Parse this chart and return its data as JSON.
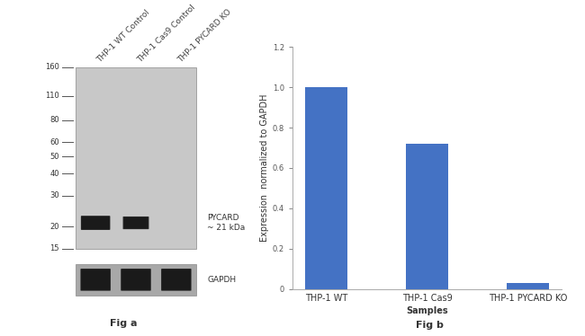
{
  "fig_width": 6.5,
  "fig_height": 3.74,
  "dpi": 100,
  "background_color": "#ffffff",
  "wb_lanes": [
    "THP-1 WT Control",
    "THP-1 Cas9 Control",
    "THP-1 PYCARD KO"
  ],
  "wb_mw_labels": [
    160,
    110,
    80,
    60,
    50,
    40,
    30,
    20,
    15
  ],
  "pycard_label": "PYCARD\n~ 21 kDa",
  "gapdh_label": "GAPDH",
  "fig_a_label": "Fig a",
  "fig_b_label": "Fig b",
  "bar_categories": [
    "THP-1 WT",
    "THP-1 Cas9",
    "THP-1 PYCARD KO"
  ],
  "bar_values": [
    1.0,
    0.72,
    0.03
  ],
  "bar_color": "#4472c4",
  "bar_ylabel": "Expression  normalized to GAPDH",
  "bar_xlabel": "Samples",
  "bar_ylim": [
    0,
    1.2
  ],
  "bar_yticks": [
    0,
    0.2,
    0.4,
    0.6,
    0.8,
    1.0,
    1.2
  ],
  "gel_bg_color": "#c8c8c8",
  "gel_border_color": "#888888",
  "label_fontsize": 6.5,
  "tick_fontsize": 6.0,
  "bar_label_fontsize": 7,
  "axis_fontsize": 7,
  "fig_label_fontsize": 8
}
